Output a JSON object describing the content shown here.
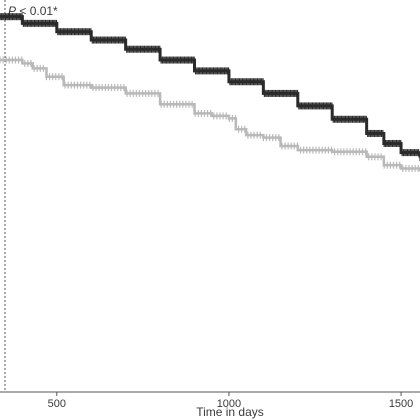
{
  "chart_data": {
    "type": "line",
    "title": "",
    "xlabel": "Time in days",
    "ylabel": "",
    "xlim": [
      335,
      1555
    ],
    "ylim": [
      0.55,
      1.02
    ],
    "xticks": [
      500,
      1000,
      1500
    ],
    "grid": false,
    "annotation": {
      "italic": "P",
      "rest": " < 0.01*"
    },
    "reference_line": {
      "x": 335,
      "style": "dotted"
    },
    "colors": {
      "series_a": "#2b2b2b",
      "series_b": "#b9b9b9",
      "axis": "#555555"
    },
    "series": [
      {
        "values": [
          [
            335,
            1.0
          ],
          [
            400,
            0.992
          ],
          [
            500,
            0.982
          ],
          [
            600,
            0.972
          ],
          [
            700,
            0.961
          ],
          [
            800,
            0.948
          ],
          [
            900,
            0.935
          ],
          [
            1000,
            0.922
          ],
          [
            1100,
            0.908
          ],
          [
            1200,
            0.893
          ],
          [
            1300,
            0.877
          ],
          [
            1400,
            0.86
          ],
          [
            1450,
            0.848
          ],
          [
            1500,
            0.837
          ],
          [
            1555,
            0.831
          ]
        ]
      },
      {
        "values": [
          [
            335,
            0.948
          ],
          [
            400,
            0.944
          ],
          [
            430,
            0.938
          ],
          [
            470,
            0.928
          ],
          [
            520,
            0.918
          ],
          [
            600,
            0.915
          ],
          [
            700,
            0.908
          ],
          [
            800,
            0.895
          ],
          [
            900,
            0.884
          ],
          [
            950,
            0.881
          ],
          [
            1000,
            0.878
          ],
          [
            1020,
            0.865
          ],
          [
            1050,
            0.858
          ],
          [
            1100,
            0.855
          ],
          [
            1150,
            0.845
          ],
          [
            1200,
            0.84
          ],
          [
            1300,
            0.838
          ],
          [
            1400,
            0.832
          ],
          [
            1450,
            0.822
          ],
          [
            1500,
            0.818
          ],
          [
            1555,
            0.815
          ]
        ]
      }
    ]
  }
}
